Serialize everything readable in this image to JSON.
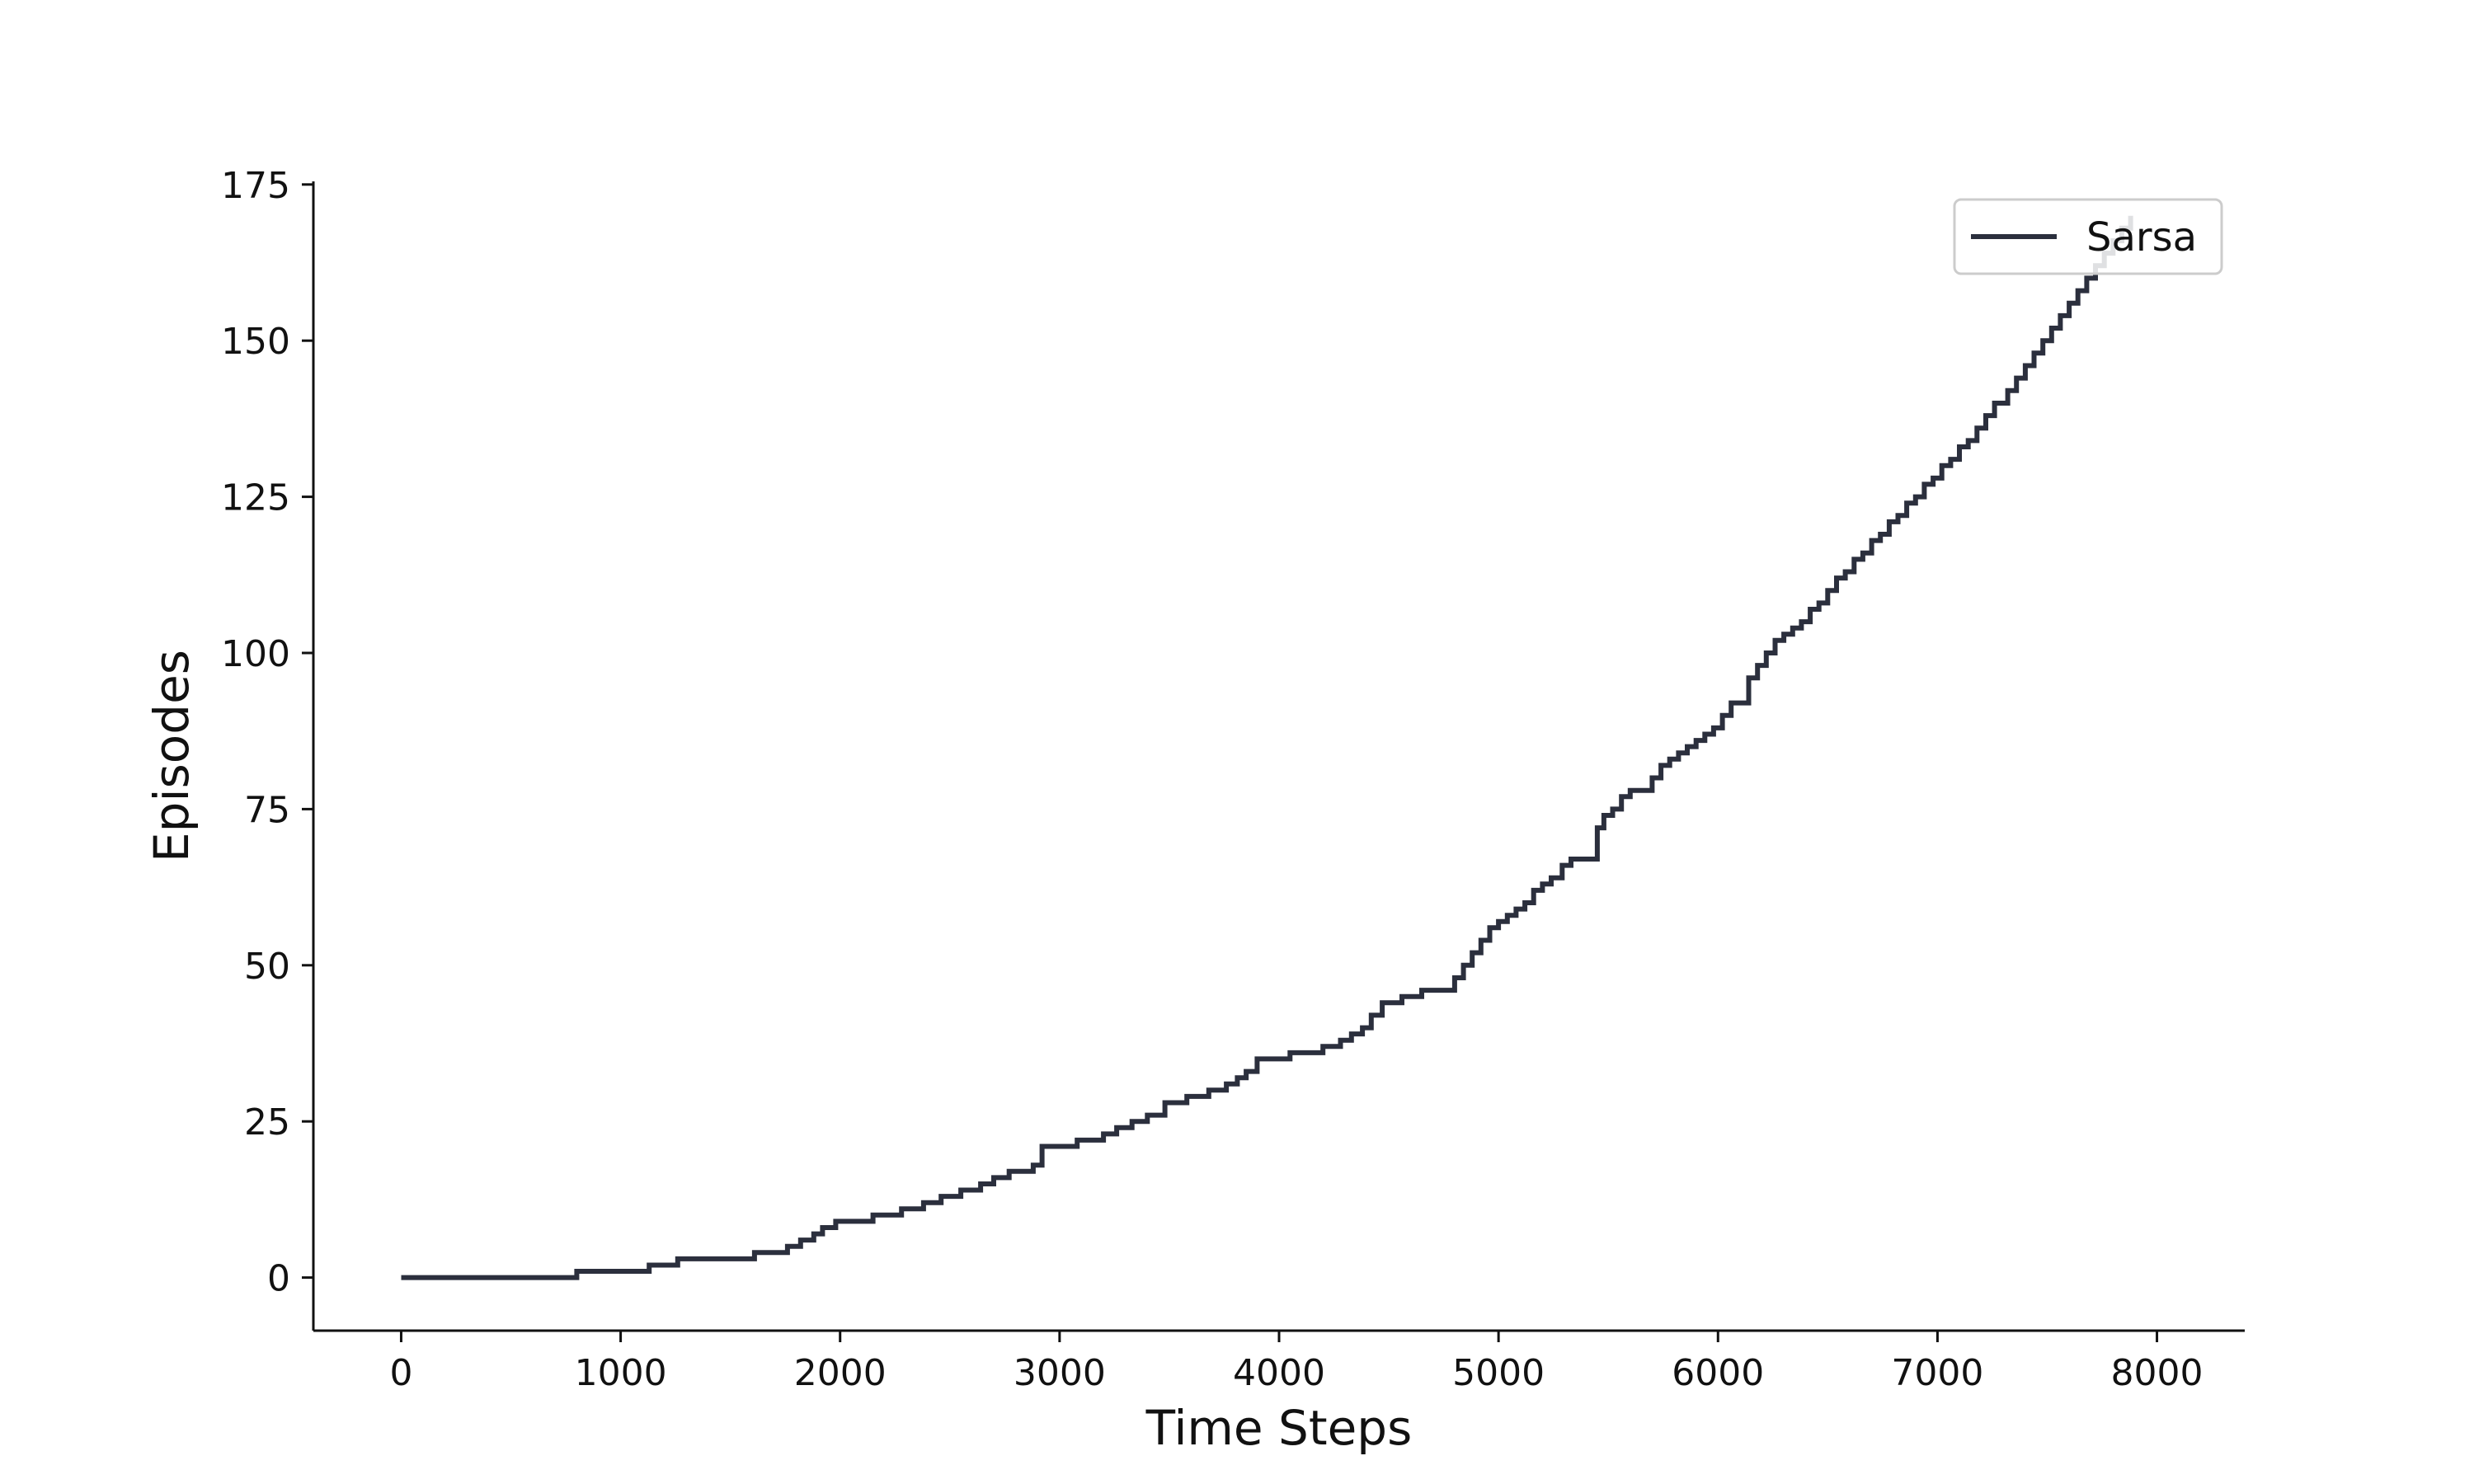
{
  "chart_data": {
    "type": "line",
    "title": "",
    "xlabel": "Time Steps",
    "ylabel": "Episodes",
    "xlim": [
      -400,
      8400
    ],
    "ylim": [
      -8.5,
      175.5
    ],
    "xticks": [
      0,
      1000,
      2000,
      3000,
      4000,
      5000,
      6000,
      7000,
      8000
    ],
    "yticks": [
      0,
      25,
      50,
      75,
      100,
      125,
      150,
      175
    ],
    "grid": false,
    "legend": {
      "placement": "top-right",
      "entries": [
        "Sarsa"
      ]
    },
    "colors": {
      "line": "#2b2f3d",
      "axis": "#111111",
      "legend_border": "#cccccc"
    },
    "series": [
      {
        "name": "Sarsa",
        "step": true,
        "x": [
          0,
          800,
          1130,
          1260,
          1610,
          1760,
          1820,
          1880,
          1920,
          1980,
          2150,
          2280,
          2380,
          2460,
          2550,
          2640,
          2700,
          2770,
          2880,
          2920,
          3080,
          3200,
          3260,
          3330,
          3400,
          3480,
          3580,
          3680,
          3760,
          3810,
          3850,
          3900,
          4050,
          4200,
          4280,
          4330,
          4380,
          4420,
          4470,
          4560,
          4650,
          4800,
          4840,
          4880,
          4920,
          4960,
          5000,
          5040,
          5080,
          5120,
          5160,
          5200,
          5240,
          5290,
          5330,
          5450,
          5480,
          5520,
          5560,
          5600,
          5700,
          5740,
          5780,
          5820,
          5860,
          5900,
          5940,
          5980,
          6020,
          6060,
          6140,
          6180,
          6220,
          6260,
          6300,
          6340,
          6380,
          6420,
          6460,
          6500,
          6540,
          6580,
          6620,
          6660,
          6700,
          6740,
          6780,
          6820,
          6860,
          6900,
          6940,
          6980,
          7020,
          7060,
          7100,
          7140,
          7180,
          7220,
          7260,
          7320,
          7360,
          7400,
          7440,
          7480,
          7520,
          7560,
          7600,
          7640,
          7680,
          7720,
          7760,
          7800,
          7840,
          7880
        ],
        "y": [
          0,
          1,
          2,
          3,
          4,
          5,
          6,
          7,
          8,
          9,
          10,
          11,
          12,
          13,
          14,
          15,
          16,
          17,
          18,
          21,
          22,
          23,
          24,
          25,
          26,
          28,
          29,
          30,
          31,
          32,
          33,
          35,
          36,
          37,
          38,
          39,
          40,
          42,
          44,
          45,
          46,
          48,
          50,
          52,
          54,
          56,
          57,
          58,
          59,
          60,
          62,
          63,
          64,
          66,
          67,
          72,
          74,
          75,
          77,
          78,
          80,
          82,
          83,
          84,
          85,
          86,
          87,
          88,
          90,
          92,
          96,
          98,
          100,
          102,
          103,
          104,
          105,
          107,
          108,
          110,
          112,
          113,
          115,
          116,
          118,
          119,
          121,
          122,
          124,
          125,
          127,
          128,
          130,
          131,
          133,
          134,
          136,
          138,
          140,
          142,
          144,
          146,
          148,
          150,
          152,
          154,
          156,
          158,
          160,
          162,
          164,
          166,
          168,
          170
        ]
      }
    ]
  }
}
